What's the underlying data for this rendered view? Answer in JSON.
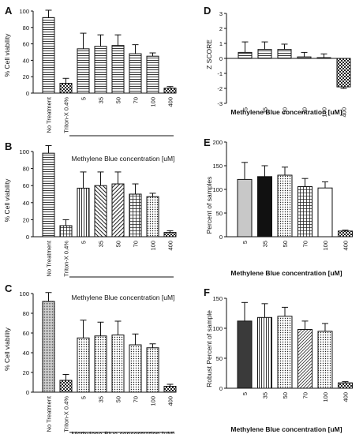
{
  "chart_data": [
    {
      "panel": "A",
      "type": "bar",
      "categories": [
        "No Treatment",
        "Triton-X 0.4%",
        "5",
        "35",
        "50",
        "70",
        "100",
        "400"
      ],
      "values": [
        92,
        12,
        54,
        57,
        58,
        48,
        45,
        6
      ],
      "errors": [
        9,
        6,
        19,
        14,
        13,
        11,
        4,
        2
      ],
      "patterns": [
        "hlines",
        "checker",
        "hlines",
        "hlines",
        "hlines",
        "hlines",
        "hlines",
        "checker"
      ],
      "ylabel": "% Cell viability",
      "xlabel": "Methylene Blue concentration [uM]",
      "ylim": [
        0,
        100
      ],
      "yticks": [
        0,
        20,
        40,
        60,
        80,
        100
      ]
    },
    {
      "panel": "B",
      "type": "bar",
      "categories": [
        "No Treatment",
        "Triton-X 0.4%",
        "5",
        "35",
        "50",
        "70",
        "100",
        "400"
      ],
      "values": [
        98,
        13,
        57,
        60,
        62,
        50,
        47,
        5
      ],
      "errors": [
        9,
        7,
        19,
        16,
        14,
        12,
        4,
        2
      ],
      "patterns": [
        "hlines",
        "grid",
        "vlines",
        "diag-down",
        "diag-up",
        "grid",
        "dots",
        "checker"
      ],
      "ylabel": "% Cell viability",
      "xlabel": "Methylene Blue concentration [uM]",
      "ylim": [
        0,
        100
      ],
      "yticks": [
        0,
        20,
        40,
        60,
        80,
        100
      ]
    },
    {
      "panel": "C",
      "type": "bar",
      "categories": [
        "No Treatment",
        "Triton-X 0.4%",
        "5",
        "35",
        "50",
        "70",
        "100",
        "400"
      ],
      "values": [
        92,
        12,
        55,
        57,
        58,
        48,
        45,
        6
      ],
      "errors": [
        9,
        6,
        18,
        14,
        14,
        11,
        4,
        2
      ],
      "patterns": [
        "fine",
        "checker",
        "dots",
        "dots",
        "dots",
        "dots",
        "dots",
        "checker"
      ],
      "ylabel": "% Cell viability",
      "xlabel": "Methylene Blue concentration [uM]",
      "ylim": [
        0,
        100
      ],
      "yticks": [
        0,
        20,
        40,
        60,
        80,
        100
      ]
    },
    {
      "panel": "D",
      "type": "bar",
      "categories": [
        "5",
        "35",
        "50",
        "70",
        "100",
        "400"
      ],
      "values": [
        0.4,
        0.6,
        0.6,
        0.1,
        0.05,
        -1.9
      ],
      "errors": [
        0.7,
        0.5,
        0.35,
        0.3,
        0.25,
        0.1
      ],
      "patterns": [
        "hlines",
        "hlines",
        "hlines",
        "hlines",
        "hlines",
        "checker"
      ],
      "ylabel": "Z SCORE",
      "xlabel": "Methylene Blue concentration [uM]",
      "ylim": [
        -3,
        3
      ],
      "yticks": [
        -3,
        -2,
        -1,
        0,
        1,
        2,
        3
      ]
    },
    {
      "panel": "E",
      "type": "bar",
      "categories": [
        "5",
        "35",
        "50",
        "70",
        "100",
        "400"
      ],
      "values": [
        121,
        127,
        130,
        106,
        103,
        12
      ],
      "errors": [
        36,
        23,
        17,
        17,
        13,
        2
      ],
      "patterns": [
        "light",
        "black",
        "dots",
        "grid",
        "white",
        "checker"
      ],
      "ylabel": "Percent of samples",
      "xlabel": "Methylene Blue concentration [uM]",
      "ylim": [
        0,
        200
      ],
      "yticks": [
        0,
        50,
        100,
        150,
        200
      ]
    },
    {
      "panel": "F",
      "type": "bar",
      "categories": [
        "5",
        "35",
        "50",
        "70",
        "100",
        "400"
      ],
      "values": [
        112,
        118,
        120,
        98,
        95,
        9
      ],
      "errors": [
        31,
        23,
        15,
        14,
        13,
        2
      ],
      "patterns": [
        "dark",
        "vlines",
        "dots",
        "diag",
        "dots",
        "checker"
      ],
      "ylabel": "Robust Percent of sample",
      "xlabel": "Methylene Blue concentration [uM]",
      "ylim": [
        0,
        150
      ],
      "yticks": [
        0,
        50,
        100,
        150
      ]
    }
  ]
}
